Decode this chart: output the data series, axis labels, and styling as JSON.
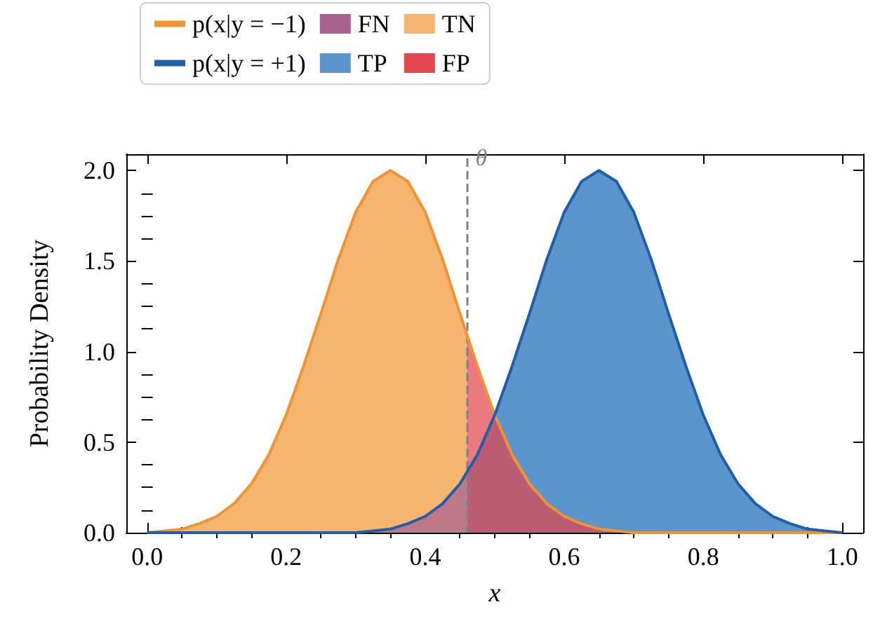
{
  "chart_data": {
    "type": "line",
    "xlabel": "x",
    "ylabel": "Probability Density",
    "xlim": [
      -0.03,
      1.03
    ],
    "ylim": [
      0,
      2.09
    ],
    "xticks": [
      {
        "value": 0,
        "label": "0.0"
      },
      0.2,
      0.4,
      0.6,
      0.8,
      {
        "value": 1,
        "label": "1.0"
      }
    ],
    "yticks": [
      {
        "value": 0,
        "label": "0.0"
      },
      0.5,
      {
        "value": 1,
        "label": "1.0"
      },
      1.5,
      {
        "value": 2,
        "label": "2.0"
      }
    ],
    "grid": false,
    "legend": "top",
    "series": [
      {
        "name": "p(x|y = −1)",
        "type": "line",
        "color": "#ef9434",
        "x": [
          0,
          0.025,
          0.05,
          0.075,
          0.1,
          0.125,
          0.15,
          0.175,
          0.2,
          0.225,
          0.25,
          0.275,
          0.3,
          0.325,
          0.35,
          0.375,
          0.4,
          0.425,
          0.45,
          0.475,
          0.5,
          0.525,
          0.55,
          0.575,
          0.6,
          0.625,
          0.65,
          0.675,
          0.7,
          0.8,
          0.9,
          1.0
        ],
        "values": [
          0.0,
          0.01,
          0.02,
          0.05,
          0.09,
          0.16,
          0.27,
          0.43,
          0.65,
          0.92,
          1.21,
          1.51,
          1.77,
          1.94,
          2.0,
          1.94,
          1.77,
          1.51,
          1.21,
          0.92,
          0.65,
          0.43,
          0.27,
          0.16,
          0.09,
          0.05,
          0.02,
          0.01,
          0.0,
          0.0,
          0.0,
          0.0
        ]
      },
      {
        "name": "p(x|y = +1)",
        "type": "line",
        "color": "#1f5ea8",
        "x": [
          0,
          0.1,
          0.2,
          0.3,
          0.325,
          0.35,
          0.375,
          0.4,
          0.425,
          0.45,
          0.475,
          0.5,
          0.525,
          0.55,
          0.575,
          0.6,
          0.625,
          0.65,
          0.675,
          0.7,
          0.725,
          0.75,
          0.775,
          0.8,
          0.825,
          0.85,
          0.875,
          0.9,
          0.925,
          0.95,
          0.975,
          1.0
        ],
        "values": [
          0.0,
          0.0,
          0.0,
          0.0,
          0.01,
          0.02,
          0.05,
          0.09,
          0.16,
          0.27,
          0.43,
          0.65,
          0.92,
          1.21,
          1.51,
          1.77,
          1.94,
          2.0,
          1.94,
          1.77,
          1.51,
          1.21,
          0.92,
          0.65,
          0.43,
          0.27,
          0.16,
          0.09,
          0.05,
          0.02,
          0.01,
          0.0
        ]
      },
      {
        "name": "FN",
        "type": "area",
        "color": "#a8628f",
        "x": [
          0,
          0.2,
          0.3,
          0.325,
          0.35,
          0.375,
          0.4,
          0.425,
          0.45,
          0.46
        ],
        "values": [
          0.0,
          0.0,
          0.0,
          0.01,
          0.02,
          0.05,
          0.09,
          0.16,
          0.27,
          0.33
        ]
      },
      {
        "name": "TP",
        "type": "area",
        "color": "#5b95cb",
        "x": [
          0.46,
          0.475,
          0.5,
          0.525,
          0.55,
          0.575,
          0.6,
          0.625,
          0.65,
          0.675,
          0.7,
          0.725,
          0.75,
          0.775,
          0.8,
          0.825,
          0.85,
          0.875,
          0.9,
          0.925,
          0.95,
          0.975,
          1.0
        ],
        "values": [
          0.33,
          0.43,
          0.65,
          0.92,
          1.21,
          1.51,
          1.77,
          1.94,
          2.0,
          1.94,
          1.77,
          1.51,
          1.21,
          0.92,
          0.65,
          0.43,
          0.27,
          0.16,
          0.09,
          0.05,
          0.02,
          0.01,
          0.0
        ]
      },
      {
        "name": "TN",
        "type": "area",
        "color": "#f5b56e",
        "x": [
          0,
          0.025,
          0.05,
          0.075,
          0.1,
          0.125,
          0.15,
          0.175,
          0.2,
          0.225,
          0.25,
          0.275,
          0.3,
          0.325,
          0.35,
          0.375,
          0.4,
          0.425,
          0.45,
          0.46
        ],
        "values": [
          0.0,
          0.01,
          0.02,
          0.05,
          0.09,
          0.16,
          0.27,
          0.43,
          0.65,
          0.92,
          1.21,
          1.51,
          1.77,
          1.94,
          2.0,
          1.94,
          1.77,
          1.51,
          1.21,
          1.09
        ]
      },
      {
        "name": "FP",
        "type": "area",
        "color": "#e2474f",
        "x": [
          0.46,
          0.475,
          0.5,
          0.525,
          0.55,
          0.575,
          0.6,
          0.625,
          0.65,
          0.675,
          0.7,
          0.8,
          0.9,
          1.0
        ],
        "values": [
          1.09,
          0.92,
          0.65,
          0.43,
          0.27,
          0.16,
          0.09,
          0.05,
          0.02,
          0.01,
          0.0,
          0.0,
          0.0,
          0.0
        ]
      }
    ],
    "ref_lines": [
      {
        "axis": "x",
        "value": 0.46,
        "label": "θ",
        "color": "#808080",
        "line_style": "dashed"
      }
    ]
  }
}
